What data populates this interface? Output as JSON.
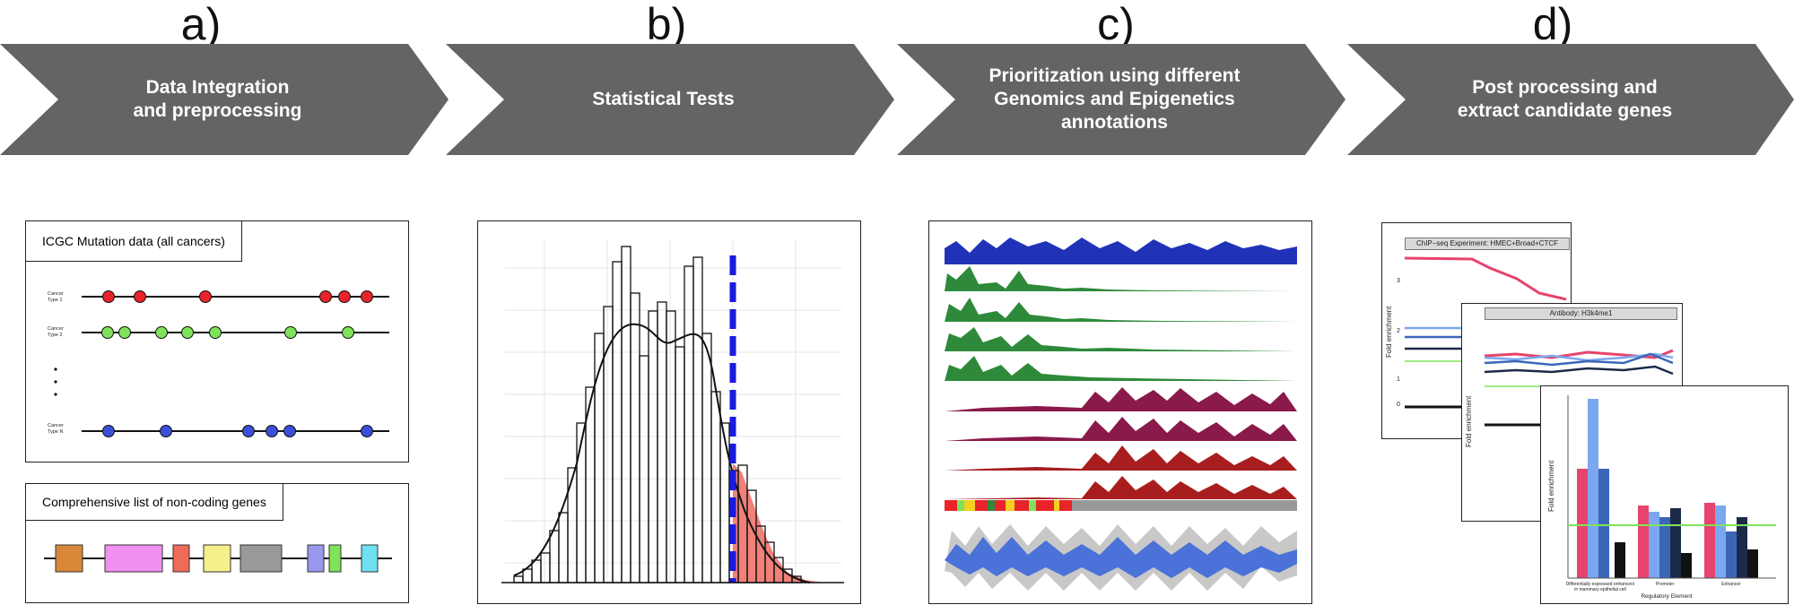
{
  "steps": [
    {
      "letter": "a)",
      "title": "Data Integration\nand preprocessing"
    },
    {
      "letter": "b)",
      "title": "Statistical Tests"
    },
    {
      "letter": "c)",
      "title": "Prioritization using different\nGenomics and Epigenetics\nannotations"
    },
    {
      "letter": "d)",
      "title": "Post processing and\nextract candidate genes"
    }
  ],
  "colors": {
    "chevron": "#646464",
    "red": "#e8242a",
    "green": "#7ee35a",
    "blue": "#3b4fd8"
  },
  "panel_a": {
    "mutation_title": "ICGC Mutation data (all cancers)",
    "tracks": [
      {
        "label": "Cancer\nType 1",
        "color": "#e8242a"
      },
      {
        "label": "Cancer\nType 2",
        "color": "#7ee35a"
      },
      {
        "label": "Cancer\nType N",
        "color": "#3b4fd8"
      }
    ],
    "ellipsis": "•\n•\n•",
    "genes_title": "Comprehensive list of non-coding genes",
    "gene_colors": [
      "#d9883a",
      "#f090f0",
      "#f06a5a",
      "#f5f08a",
      "#999999",
      "#9898ee",
      "#7ee35a",
      "#6ee0f0"
    ]
  },
  "panel_d": {
    "chart1_title": "ChIP−seq Experiment: HMEC+Broad+CTCF",
    "chart2_title": "Antibody: H3k4me1",
    "ylabel": "Fold enrichment",
    "chart1_ticks": [
      "3",
      "2",
      "1",
      "0"
    ],
    "chart3_categories": [
      "Differentially expressed enhancers\nin mammary epithelial cell",
      "Promoter",
      "Enhancer"
    ],
    "chart3_xlabel": "Regulatory Element"
  }
}
